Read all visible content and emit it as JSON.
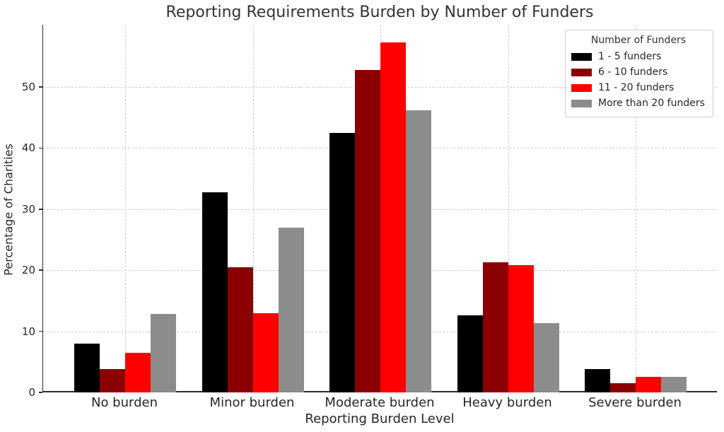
{
  "chart_data": {
    "type": "bar",
    "title": "Reporting Requirements Burden by Number of Funders",
    "xlabel": "Reporting Burden Level",
    "ylabel": "Percentage of Charities",
    "legend_title": "Number of Funders",
    "legend_position": "upper right",
    "grid": true,
    "categories": [
      "No burden",
      "Minor burden",
      "Moderate burden",
      "Heavy burden",
      "Severe burden"
    ],
    "series": [
      {
        "name": "1 - 5 funders",
        "color": "#000000",
        "values": [
          8.0,
          32.8,
          42.5,
          12.6,
          3.8
        ]
      },
      {
        "name": "6 - 10 funders",
        "color": "#8b0000",
        "values": [
          3.8,
          20.5,
          52.8,
          21.3,
          1.5
        ]
      },
      {
        "name": "11 - 20 funders",
        "color": "#ff0000",
        "values": [
          6.5,
          13.0,
          57.3,
          20.8,
          2.6
        ]
      },
      {
        "name": "More than 20 funders",
        "color": "#8c8c8c",
        "values": [
          12.8,
          27.0,
          46.2,
          11.4,
          2.6
        ]
      }
    ],
    "yticks": [
      0,
      10,
      20,
      30,
      40,
      50
    ],
    "ylim": [
      0,
      60.2
    ],
    "colors": {
      "axis": "#2b2b2b",
      "grid": "#d0d0d0",
      "text": "#262626",
      "title": "#333333",
      "background": "#ffffff"
    }
  }
}
